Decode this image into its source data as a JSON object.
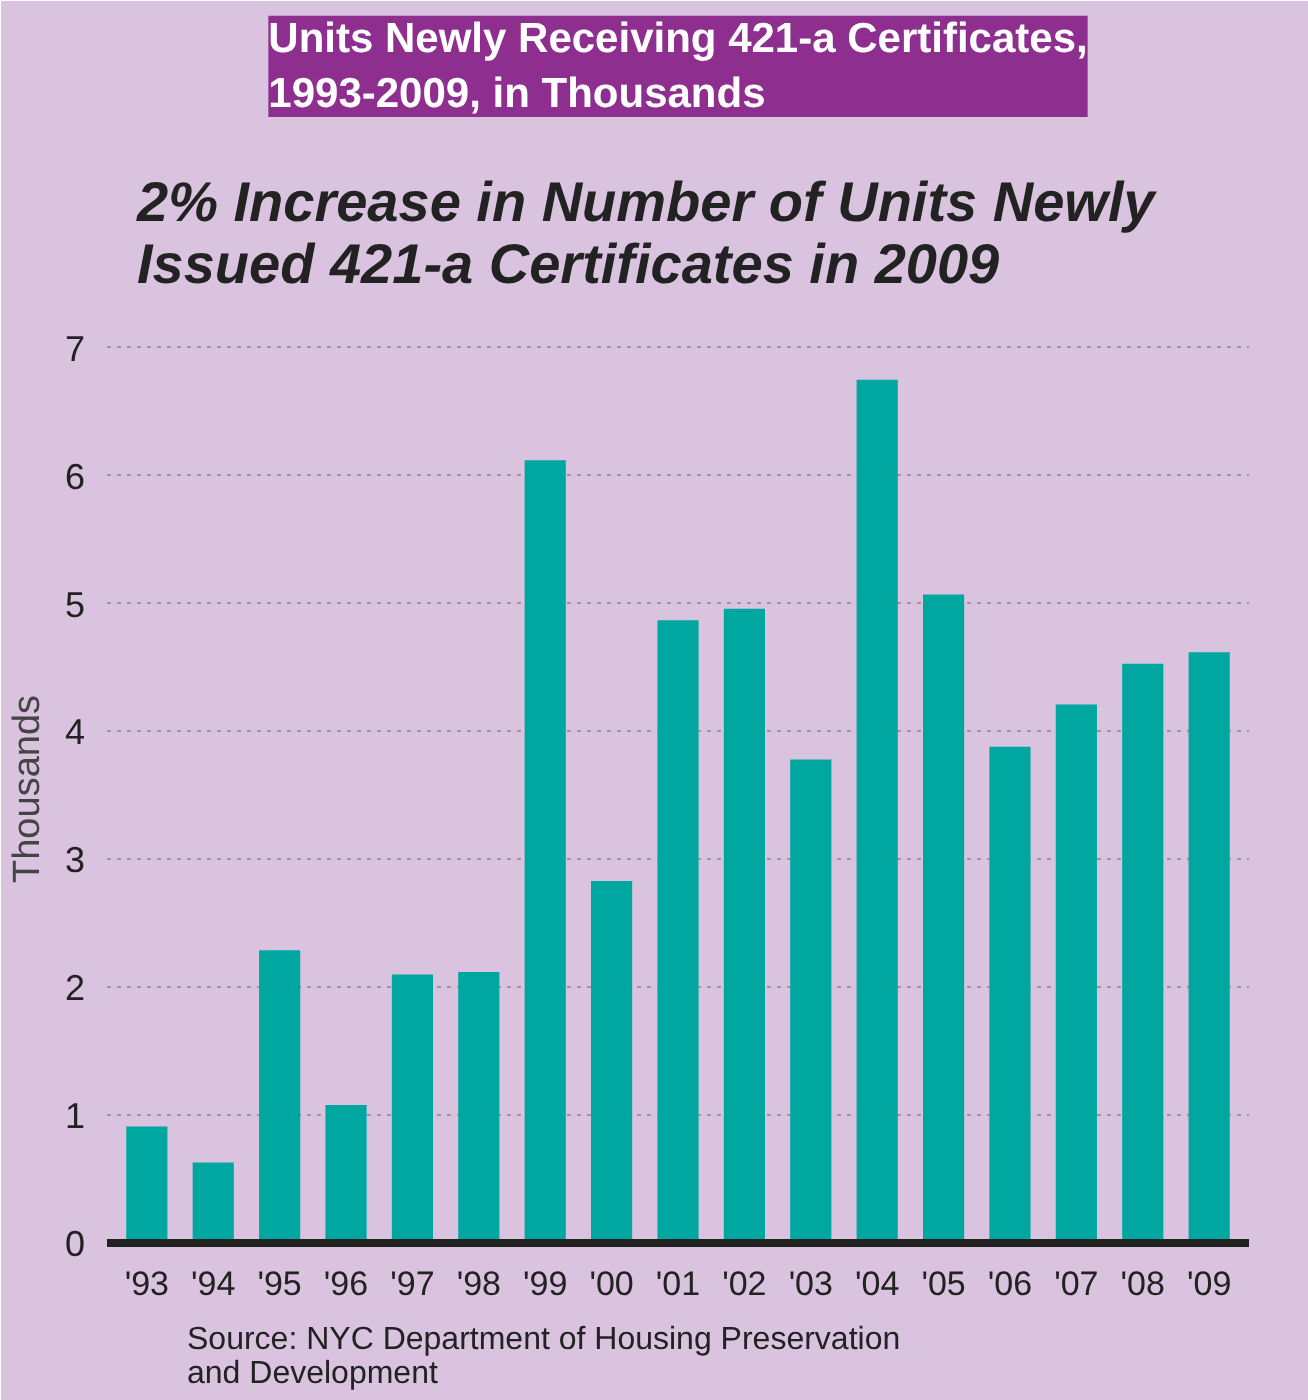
{
  "chart_data": {
    "type": "bar",
    "title": "Units Newly Receiving 421-a Certificates,\n1993-2009, in Thousands",
    "subtitle": "2% Increase in Number of Units Newly\nIssued 421-a Certificates in 2009",
    "ylabel": "Thousands",
    "categories": [
      "'93",
      "'94",
      "'95",
      "'96",
      "'97",
      "'98",
      "'99",
      "'00",
      "'01",
      "'02",
      "'03",
      "'04",
      "'05",
      "'06",
      "'07",
      "'08",
      "'09"
    ],
    "values": [
      0.91,
      0.63,
      2.29,
      1.08,
      2.1,
      2.12,
      6.12,
      2.83,
      4.87,
      4.96,
      3.78,
      6.75,
      5.07,
      3.88,
      4.21,
      4.53,
      4.62
    ],
    "color": "#00a6a0",
    "ylim": [
      0,
      7.1
    ],
    "yticks": [
      0,
      1,
      2,
      3,
      4,
      5,
      6,
      7
    ],
    "grid": "y",
    "annotations": [
      "Source: NYC Department of Housing Preservation\nand Development"
    ]
  }
}
